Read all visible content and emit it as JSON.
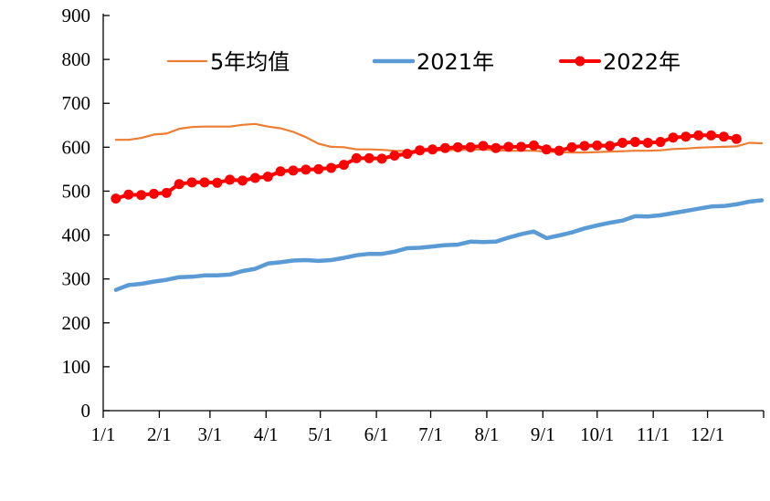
{
  "chart_data": {
    "type": "line",
    "title": "",
    "xlabel": "",
    "ylabel": "",
    "ylim": [
      0,
      900
    ],
    "yticks": [
      0,
      100,
      200,
      300,
      400,
      500,
      600,
      700,
      800,
      900
    ],
    "x_unit": "day_of_year",
    "xlim": [
      1,
      366
    ],
    "xtick_labels": [
      "1/1",
      "2/1",
      "3/1",
      "4/1",
      "5/1",
      "6/1",
      "7/1",
      "8/1",
      "9/1",
      "10/1",
      "11/1",
      "12/1"
    ],
    "xtick_days": [
      1,
      32,
      60,
      91,
      121,
      152,
      182,
      213,
      244,
      274,
      305,
      335
    ],
    "grid": false,
    "legend": "top",
    "series": [
      {
        "name": "5年均值",
        "color": "#ED7D31",
        "style": "thin",
        "x": [
          8,
          15,
          22,
          29,
          36,
          43,
          50,
          57,
          64,
          71,
          78,
          85,
          92,
          99,
          106,
          113,
          120,
          127,
          134,
          141,
          148,
          155,
          162,
          169,
          176,
          183,
          190,
          197,
          204,
          211,
          218,
          225,
          232,
          239,
          246,
          253,
          260,
          267,
          274,
          281,
          288,
          295,
          302,
          309,
          316,
          323,
          330,
          337,
          344,
          351,
          358,
          365
        ],
        "values": [
          617,
          617,
          621,
          629,
          631,
          642,
          646,
          647,
          647,
          647,
          651,
          653,
          647,
          643,
          635,
          623,
          608,
          601,
          600,
          595,
          595,
          594,
          592,
          591,
          592,
          592,
          593,
          594,
          594,
          595,
          593,
          592,
          592,
          592,
          590,
          589,
          588,
          588,
          589,
          590,
          591,
          592,
          592,
          593,
          596,
          597,
          599,
          600,
          601,
          602,
          610,
          609
        ]
      },
      {
        "name": "2021年",
        "color": "#5B9BD5",
        "style": "thick",
        "x": [
          8,
          15,
          22,
          29,
          36,
          43,
          50,
          57,
          64,
          71,
          78,
          85,
          92,
          99,
          106,
          113,
          120,
          127,
          134,
          141,
          148,
          155,
          162,
          169,
          176,
          183,
          190,
          197,
          204,
          211,
          218,
          225,
          232,
          239,
          246,
          253,
          260,
          267,
          274,
          281,
          288,
          295,
          302,
          309,
          316,
          323,
          330,
          337,
          344,
          351,
          358,
          365
        ],
        "values": [
          275,
          286,
          289,
          294,
          298,
          304,
          305,
          308,
          308,
          310,
          318,
          323,
          335,
          338,
          342,
          343,
          341,
          343,
          348,
          354,
          357,
          357,
          362,
          370,
          371,
          374,
          377,
          378,
          385,
          384,
          385,
          394,
          402,
          408,
          393,
          399,
          406,
          415,
          422,
          428,
          433,
          443,
          442,
          445,
          450,
          455,
          460,
          465,
          466,
          470,
          476,
          479
        ]
      },
      {
        "name": "2022年",
        "color": "#FF0000",
        "style": "markers",
        "x": [
          8,
          15,
          22,
          29,
          36,
          43,
          50,
          57,
          64,
          71,
          78,
          85,
          92,
          99,
          106,
          113,
          120,
          127,
          134,
          141,
          148,
          155,
          162,
          169,
          176,
          183,
          190,
          197,
          204,
          211,
          218,
          225,
          232,
          239,
          246,
          253,
          260,
          267,
          274,
          281,
          288,
          295,
          302,
          309,
          316,
          323,
          330,
          337,
          344,
          351
        ],
        "values": [
          483,
          492,
          491,
          494,
          496,
          516,
          520,
          520,
          519,
          526,
          524,
          530,
          533,
          545,
          547,
          549,
          550,
          553,
          560,
          575,
          575,
          574,
          581,
          585,
          593,
          595,
          598,
          600,
          600,
          603,
          598,
          601,
          601,
          604,
          595,
          592,
          600,
          603,
          604,
          603,
          610,
          612,
          610,
          612,
          622,
          624,
          627,
          627,
          624,
          619
        ]
      }
    ]
  }
}
